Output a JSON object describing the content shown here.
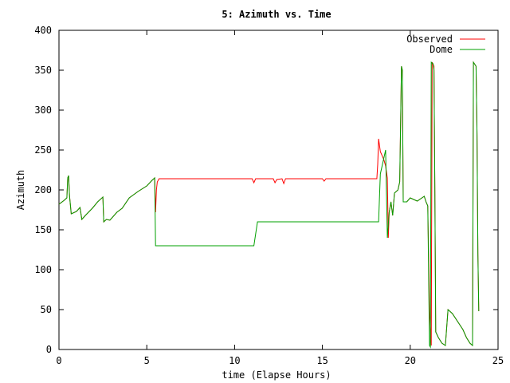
{
  "chart_data": {
    "type": "line",
    "title": "5: Azimuth vs. Time",
    "xlabel": "time (Elapse Hours)",
    "ylabel": "Azimuth",
    "xlim": [
      0,
      25
    ],
    "ylim": [
      0,
      400
    ],
    "xticks": [
      0,
      5,
      10,
      15,
      20,
      25
    ],
    "yticks": [
      0,
      50,
      100,
      150,
      200,
      250,
      300,
      350,
      400
    ],
    "grid": false,
    "legend_position": "top-right",
    "series": [
      {
        "name": "Observed",
        "color": "#ff0000",
        "points": [
          [
            0.0,
            182
          ],
          [
            0.3,
            187
          ],
          [
            0.45,
            190
          ],
          [
            0.5,
            215
          ],
          [
            0.55,
            218
          ],
          [
            0.6,
            193
          ],
          [
            0.7,
            170
          ],
          [
            1.0,
            173
          ],
          [
            1.2,
            178
          ],
          [
            1.3,
            163
          ],
          [
            1.5,
            168
          ],
          [
            1.9,
            177
          ],
          [
            2.2,
            185
          ],
          [
            2.5,
            191
          ],
          [
            2.55,
            160
          ],
          [
            2.7,
            163
          ],
          [
            2.9,
            162
          ],
          [
            3.3,
            172
          ],
          [
            3.6,
            177
          ],
          [
            4.0,
            190
          ],
          [
            4.5,
            198
          ],
          [
            5.0,
            205
          ],
          [
            5.3,
            212
          ],
          [
            5.45,
            215
          ],
          [
            5.5,
            172
          ],
          [
            5.55,
            200
          ],
          [
            5.6,
            210
          ],
          [
            5.7,
            214
          ],
          [
            11.0,
            214
          ],
          [
            11.1,
            209
          ],
          [
            11.2,
            214
          ],
          [
            12.2,
            214
          ],
          [
            12.3,
            209
          ],
          [
            12.4,
            213
          ],
          [
            12.7,
            214
          ],
          [
            12.8,
            208
          ],
          [
            12.9,
            214
          ],
          [
            14.0,
            214
          ],
          [
            15.0,
            214
          ],
          [
            15.1,
            211
          ],
          [
            15.2,
            214
          ],
          [
            18.1,
            214
          ],
          [
            18.15,
            232
          ],
          [
            18.2,
            264
          ],
          [
            18.3,
            248
          ],
          [
            18.5,
            238
          ],
          [
            18.6,
            230
          ],
          [
            18.7,
            215
          ],
          [
            18.75,
            140
          ],
          [
            18.8,
            172
          ],
          [
            18.9,
            185
          ],
          [
            19.0,
            168
          ],
          [
            19.1,
            196
          ],
          [
            19.3,
            200
          ],
          [
            19.4,
            210
          ],
          [
            19.5,
            355
          ],
          [
            19.55,
            350
          ],
          [
            19.6,
            185
          ],
          [
            19.8,
            185
          ],
          [
            20.0,
            190
          ],
          [
            20.4,
            186
          ],
          [
            20.8,
            192
          ],
          [
            20.9,
            185
          ],
          [
            21.0,
            180
          ],
          [
            21.1,
            50
          ],
          [
            21.2,
            5
          ],
          [
            21.25,
            360
          ],
          [
            21.35,
            355
          ],
          [
            21.4,
            200
          ],
          [
            21.45,
            22
          ],
          [
            21.6,
            15
          ],
          [
            21.8,
            8
          ],
          [
            22.0,
            5
          ],
          [
            22.15,
            50
          ],
          [
            22.4,
            45
          ],
          [
            22.7,
            35
          ],
          [
            23.0,
            25
          ],
          [
            23.2,
            15
          ],
          [
            23.4,
            8
          ],
          [
            23.55,
            5
          ],
          [
            23.6,
            360
          ],
          [
            23.75,
            355
          ],
          [
            23.8,
            270
          ],
          [
            23.85,
            120
          ],
          [
            23.9,
            48
          ]
        ]
      },
      {
        "name": "Dome",
        "color": "#00a000",
        "points": [
          [
            0.0,
            182
          ],
          [
            0.3,
            187
          ],
          [
            0.45,
            190
          ],
          [
            0.5,
            215
          ],
          [
            0.55,
            218
          ],
          [
            0.6,
            193
          ],
          [
            0.7,
            170
          ],
          [
            1.0,
            173
          ],
          [
            1.2,
            178
          ],
          [
            1.3,
            163
          ],
          [
            1.5,
            168
          ],
          [
            1.9,
            177
          ],
          [
            2.2,
            185
          ],
          [
            2.5,
            191
          ],
          [
            2.55,
            160
          ],
          [
            2.7,
            163
          ],
          [
            2.9,
            162
          ],
          [
            3.3,
            172
          ],
          [
            3.6,
            177
          ],
          [
            4.0,
            190
          ],
          [
            4.5,
            198
          ],
          [
            5.0,
            205
          ],
          [
            5.3,
            212
          ],
          [
            5.45,
            215
          ],
          [
            5.5,
            130
          ],
          [
            11.1,
            130
          ],
          [
            11.3,
            160
          ],
          [
            18.2,
            160
          ],
          [
            18.3,
            220
          ],
          [
            18.5,
            240
          ],
          [
            18.6,
            250
          ],
          [
            18.7,
            140
          ],
          [
            18.8,
            172
          ],
          [
            18.9,
            185
          ],
          [
            19.0,
            168
          ],
          [
            19.1,
            196
          ],
          [
            19.3,
            200
          ],
          [
            19.4,
            210
          ],
          [
            19.5,
            355
          ],
          [
            19.55,
            350
          ],
          [
            19.6,
            185
          ],
          [
            19.8,
            185
          ],
          [
            20.0,
            190
          ],
          [
            20.4,
            186
          ],
          [
            20.8,
            192
          ],
          [
            20.9,
            185
          ],
          [
            21.0,
            180
          ],
          [
            21.1,
            5
          ],
          [
            21.15,
            3
          ],
          [
            21.2,
            360
          ],
          [
            21.3,
            358
          ],
          [
            21.35,
            350
          ],
          [
            21.4,
            200
          ],
          [
            21.45,
            22
          ],
          [
            21.6,
            15
          ],
          [
            21.8,
            8
          ],
          [
            22.0,
            5
          ],
          [
            22.15,
            50
          ],
          [
            22.4,
            45
          ],
          [
            22.7,
            35
          ],
          [
            23.0,
            25
          ],
          [
            23.2,
            15
          ],
          [
            23.4,
            8
          ],
          [
            23.55,
            5
          ],
          [
            23.6,
            360
          ],
          [
            23.75,
            355
          ],
          [
            23.8,
            270
          ],
          [
            23.85,
            120
          ],
          [
            23.9,
            48
          ]
        ]
      }
    ]
  }
}
